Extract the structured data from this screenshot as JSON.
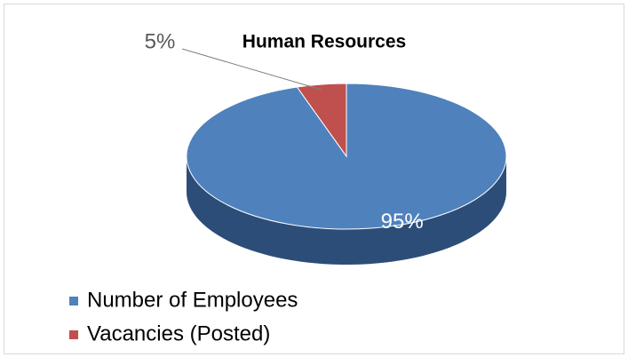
{
  "chart_data": {
    "type": "pie",
    "title": "Human Resources",
    "categories": [
      "Number of Employees",
      "Vacancies (Posted)"
    ],
    "values": [
      95,
      5
    ],
    "value_labels": [
      "95%",
      "5%"
    ],
    "colors": [
      "#4f81bd",
      "#c0504d"
    ],
    "legend": "bottom-left"
  }
}
